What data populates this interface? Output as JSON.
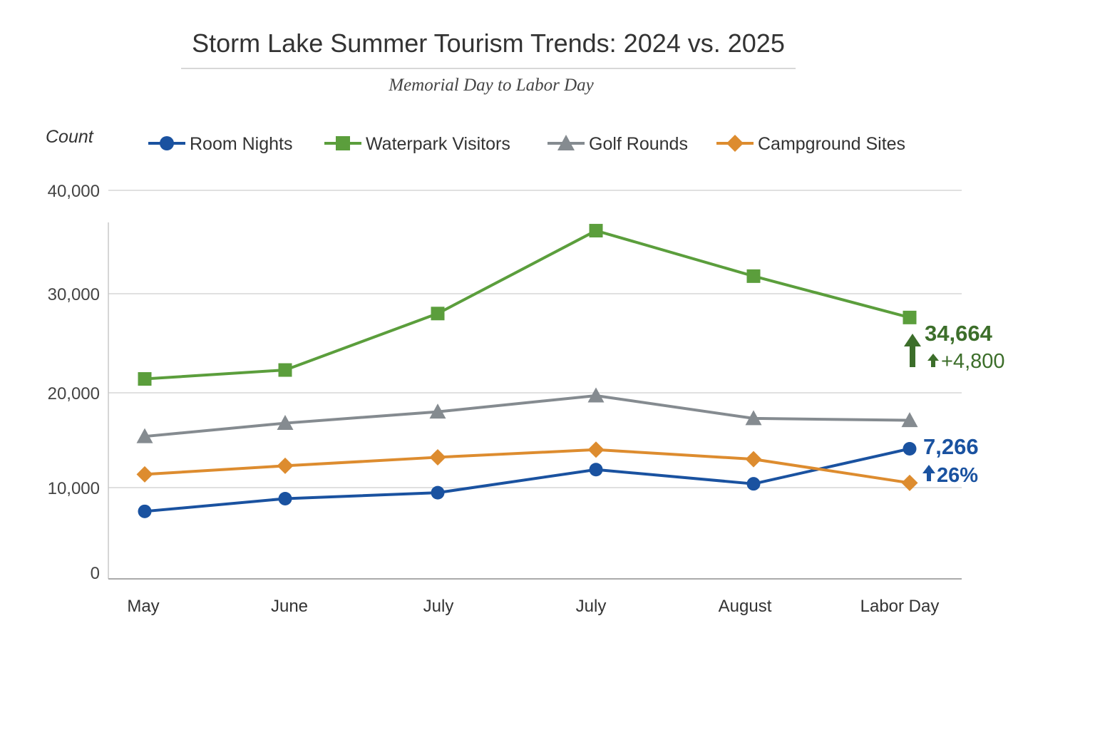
{
  "chart_data": {
    "type": "line",
    "title": "Storm Lake Summer Tourism Trends: 2024 vs. 2025",
    "subtitle": "Memorial Day to Labor Day",
    "ylabel": "Count",
    "xlabel": "",
    "categories": [
      "May",
      "June",
      "July",
      "July",
      "August",
      "Labor Day"
    ],
    "yticks": [
      0,
      10000,
      20000,
      30000,
      40000
    ],
    "ytick_labels": [
      "0",
      "10,000",
      "20,000",
      "30,000",
      "40,000"
    ],
    "ylim": [
      0,
      40000
    ],
    "grid": true,
    "legend_placement": "top",
    "series": [
      {
        "name": "Room Nights",
        "color": "#1a52a0",
        "marker": "circle",
        "values": [
          7200,
          8700,
          9400,
          11900,
          10400,
          14100
        ]
      },
      {
        "name": "Waterpark Visitors",
        "color": "#5b9e3c",
        "marker": "square",
        "values": [
          21400,
          22300,
          28000,
          36100,
          31700,
          27600
        ]
      },
      {
        "name": "Golf Rounds",
        "color": "#858b90",
        "marker": "triangle",
        "values": [
          15400,
          16800,
          18000,
          19700,
          17300,
          17100
        ]
      },
      {
        "name": "Campground Sites",
        "color": "#dd8c2f",
        "marker": "diamond",
        "values": [
          11400,
          12300,
          13200,
          14000,
          13000,
          10500
        ]
      }
    ],
    "annotations": [
      {
        "series": "Waterpark Visitors",
        "value": "34,664",
        "change": "+4,800",
        "icon": "arrow-up-icon",
        "color": "#3c6e2a"
      },
      {
        "series": "Room Nights",
        "value": "7,266",
        "change": "26%",
        "icon": "arrow-up-icon",
        "color": "#1a52a0"
      }
    ]
  }
}
